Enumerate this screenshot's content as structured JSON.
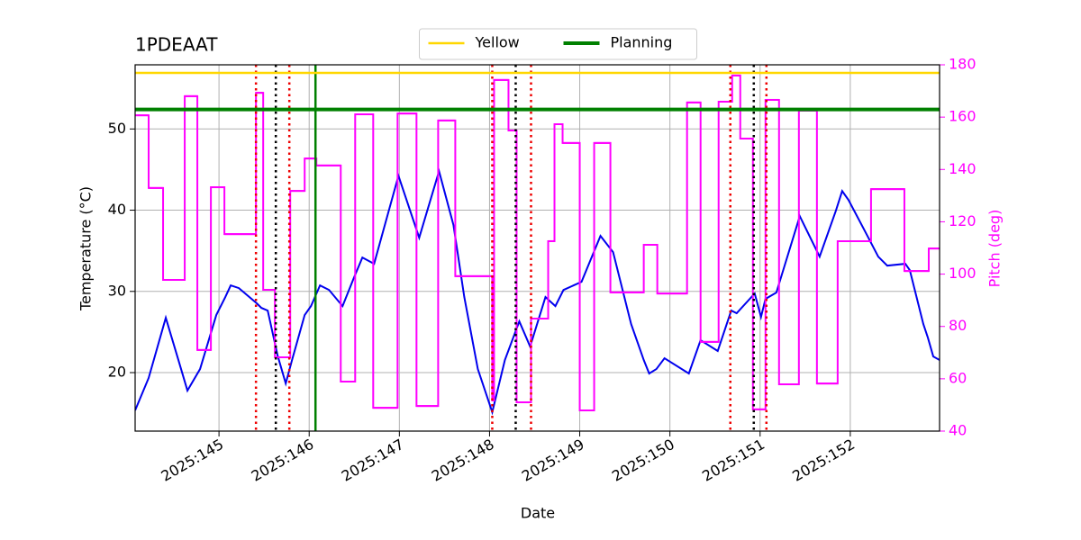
{
  "chart_data": {
    "type": "line",
    "title": "1PDEAAT",
    "xlabel": "Date",
    "ylabel": "Temperature (°C)",
    "y2label": "Pitch (deg)",
    "xlim": [
      144.07,
      152.99
    ],
    "ylim": [
      12.8,
      57.9
    ],
    "y2lim": [
      40,
      180
    ],
    "xticks": [
      {
        "value": 145,
        "label": "2025:145"
      },
      {
        "value": 146,
        "label": "2025:146"
      },
      {
        "value": 147,
        "label": "2025:147"
      },
      {
        "value": 148,
        "label": "2025:148"
      },
      {
        "value": 149,
        "label": "2025:149"
      },
      {
        "value": 150,
        "label": "2025:150"
      },
      {
        "value": 151,
        "label": "2025:151"
      },
      {
        "value": 152,
        "label": "2025:152"
      }
    ],
    "yticks": [
      20,
      30,
      40,
      50
    ],
    "y2ticks": [
      40,
      60,
      80,
      100,
      120,
      140,
      160,
      180
    ],
    "grid": true,
    "y2color": "#ff00ff",
    "series": [
      {
        "color": "#0000ee",
        "drawstyle": "line",
        "x": [
          144.07,
          144.22,
          144.41,
          144.55,
          144.65,
          144.79,
          144.97,
          145.07,
          145.13,
          145.22,
          145.42,
          145.47,
          145.54,
          145.65,
          145.74,
          145.81,
          145.95,
          146.02,
          146.12,
          146.22,
          146.37,
          146.49,
          146.59,
          146.72,
          146.99,
          147.22,
          147.44,
          147.6,
          147.72,
          147.87,
          148.03,
          148.17,
          148.33,
          148.45,
          148.62,
          148.73,
          148.82,
          149.02,
          149.23,
          149.37,
          149.57,
          149.71,
          149.77,
          149.85,
          149.94,
          150.21,
          150.34,
          150.53,
          150.68,
          150.74,
          150.94,
          151.01,
          151.06,
          151.18,
          151.44,
          151.66,
          151.84,
          151.91,
          151.98,
          152.18,
          152.31,
          152.41,
          152.61,
          152.66,
          152.81,
          152.86,
          152.92,
          152.99
        ],
        "values": [
          15.35,
          19.34,
          26.75,
          21.55,
          17.79,
          20.44,
          27.09,
          29.3,
          30.74,
          30.41,
          28.52,
          27.97,
          27.64,
          22.1,
          18.67,
          21.55,
          27.09,
          28.19,
          30.74,
          30.18,
          28.19,
          31.51,
          34.17,
          33.4,
          44.24,
          36.61,
          44.8,
          38.16,
          29.3,
          20.44,
          15.13,
          21.55,
          26.31,
          23.21,
          29.3,
          28.19,
          30.18,
          31.18,
          36.83,
          34.83,
          25.98,
          21.55,
          19.89,
          20.44,
          21.77,
          19.89,
          23.99,
          22.66,
          27.64,
          27.31,
          29.74,
          26.86,
          29.08,
          29.85,
          39.26,
          34.28,
          39.93,
          42.36,
          41.26,
          37.05,
          34.28,
          33.17,
          33.4,
          32.62,
          25.98,
          24.32,
          21.99,
          21.55
        ]
      },
      {
        "color": "#ff00ff",
        "axis": "y2",
        "drawstyle": "steps-post",
        "x": [
          144.07,
          144.22,
          144.38,
          144.62,
          144.76,
          144.91,
          145.06,
          145.41,
          145.49,
          145.62,
          145.79,
          145.95,
          146.08,
          146.35,
          146.51,
          146.71,
          146.98,
          147.19,
          147.43,
          147.62,
          148.03,
          148.05,
          148.21,
          148.3,
          148.46,
          148.65,
          148.72,
          148.81,
          149.0,
          149.16,
          149.34,
          149.71,
          149.86,
          150.19,
          150.34,
          150.54,
          150.69,
          150.78,
          150.92,
          151.06,
          151.21,
          151.43,
          151.63,
          151.86,
          152.23,
          152.6,
          152.87,
          152.99
        ],
        "values": [
          160.7,
          132.9,
          97.8,
          168.0,
          71.0,
          133.2,
          115.3,
          169.3,
          94.0,
          68.2,
          131.8,
          144.2,
          141.5,
          58.9,
          161.1,
          48.9,
          161.4,
          49.6,
          158.7,
          99.2,
          51.7,
          174.2,
          154.9,
          51.0,
          83.0,
          112.6,
          157.3,
          150.1,
          47.9,
          150.1,
          93.0,
          111.2,
          92.6,
          165.6,
          74.1,
          165.9,
          175.9,
          151.8,
          48.3,
          166.6,
          57.9,
          162.5,
          58.2,
          112.6,
          132.5,
          101.2,
          109.8,
          109.8
        ]
      }
    ],
    "hlines": [
      {
        "name": "Yellow",
        "color": "#ffd700",
        "value": 56.9
      },
      {
        "name": "Planning",
        "color": "#008000",
        "value": 52.4
      }
    ],
    "vlines": [
      {
        "x": 145.41,
        "color": "#ee0000",
        "style": "dotted"
      },
      {
        "x": 145.63,
        "color": "#000000",
        "style": "dotted"
      },
      {
        "x": 145.78,
        "color": "#ee0000",
        "style": "dotted"
      },
      {
        "x": 146.07,
        "color": "#008000",
        "style": "solid"
      },
      {
        "x": 148.03,
        "color": "#ee0000",
        "style": "dotted"
      },
      {
        "x": 148.29,
        "color": "#000000",
        "style": "dotted"
      },
      {
        "x": 148.46,
        "color": "#ee0000",
        "style": "dotted"
      },
      {
        "x": 150.67,
        "color": "#ee0000",
        "style": "dotted"
      },
      {
        "x": 150.93,
        "color": "#000000",
        "style": "dotted"
      },
      {
        "x": 151.07,
        "color": "#ee0000",
        "style": "dotted"
      }
    ],
    "legend": "upper center"
  }
}
